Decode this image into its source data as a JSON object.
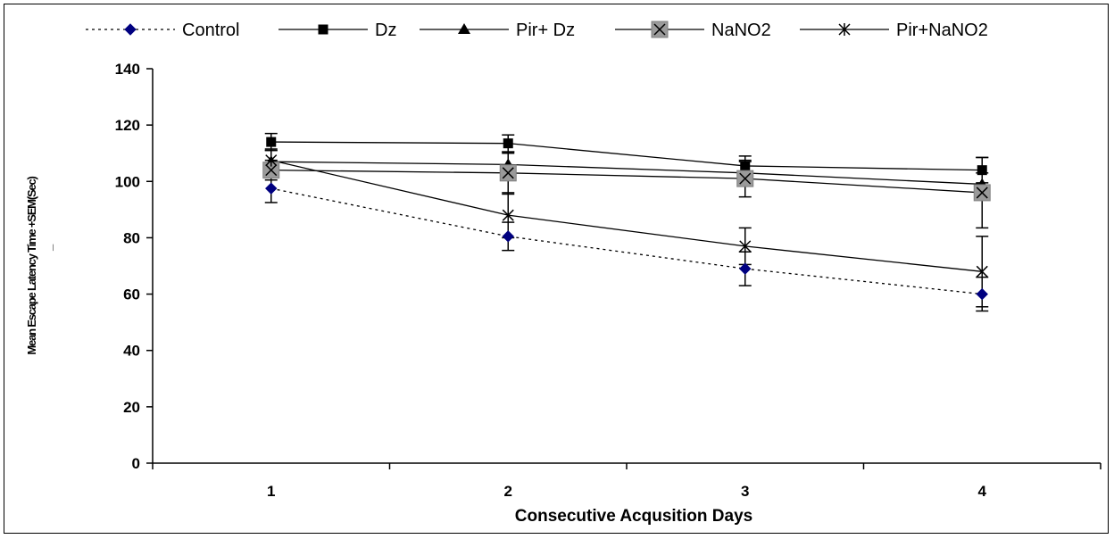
{
  "chart_data": {
    "type": "line",
    "title": "",
    "xlabel": "Consecutive Acqusition Days",
    "ylabel": "Mean Escape Latency Time +SEM(Sec)",
    "ylabel_extra": "_",
    "categories": [
      "1",
      "2",
      "3",
      "4"
    ],
    "ylim": [
      0,
      140
    ],
    "yticks": [
      0,
      20,
      40,
      60,
      80,
      100,
      120,
      140
    ],
    "grid": false,
    "legend_position": "top",
    "series": [
      {
        "name": "Control",
        "marker": "diamond",
        "line": "dotted",
        "color": "#000080",
        "values": [
          97.5,
          80.5,
          69,
          60
        ],
        "errors": [
          5,
          5,
          6,
          6
        ]
      },
      {
        "name": "Dz",
        "marker": "square",
        "line": "solid",
        "color": "#000000",
        "values": [
          114,
          113.5,
          105.5,
          104
        ],
        "errors": [
          3,
          3,
          3.5,
          4.5
        ]
      },
      {
        "name": "Pir+ Dz",
        "marker": "triangle",
        "line": "solid",
        "color": "#000000",
        "values": [
          107,
          106,
          103,
          99
        ],
        "errors": [
          4,
          4,
          4,
          4
        ]
      },
      {
        "name": "NaNO2",
        "marker": "x-box",
        "line": "solid",
        "color": "#808080",
        "values": [
          104,
          103,
          101,
          96
        ],
        "errors": [
          3.5,
          7.5,
          6.5,
          12.5
        ]
      },
      {
        "name": "Pir+NaNO2",
        "marker": "star",
        "line": "solid",
        "color": "#000000",
        "values": [
          107.5,
          88,
          77,
          68
        ],
        "errors": [
          4,
          8,
          6.5,
          12.5
        ]
      }
    ]
  }
}
